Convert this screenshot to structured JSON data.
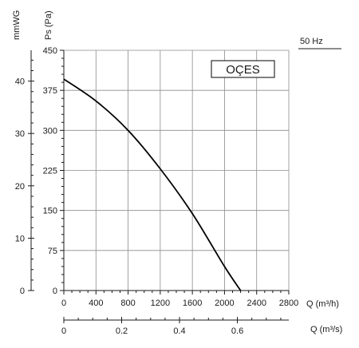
{
  "chart_data": {
    "type": "line",
    "title": "",
    "brand_label": "OÇES",
    "frequency_label": "50 Hz",
    "xlabel": "Q (m³/h)",
    "xlabel2": "Q (m³/s)",
    "ylabel": "Ps (Pa)",
    "ylabel2": "mmWG",
    "xlim": [
      0,
      2800
    ],
    "ylim": [
      0,
      450
    ],
    "x_ticks": [
      0,
      400,
      800,
      1200,
      1600,
      2000,
      2400,
      2800
    ],
    "y_ticks": [
      0,
      75,
      150,
      225,
      300,
      375,
      450
    ],
    "x2_ticks": [
      "0",
      "0.2",
      "0.4",
      "0.6"
    ],
    "y2_ticks": [
      "0",
      "10",
      "20",
      "30",
      "40"
    ],
    "grid": true,
    "series": [
      {
        "x": [
          0,
          400,
          800,
          1200,
          1600,
          2000,
          2200
        ],
        "y": [
          396,
          355,
          300,
          228,
          144,
          45,
          0
        ]
      }
    ]
  }
}
